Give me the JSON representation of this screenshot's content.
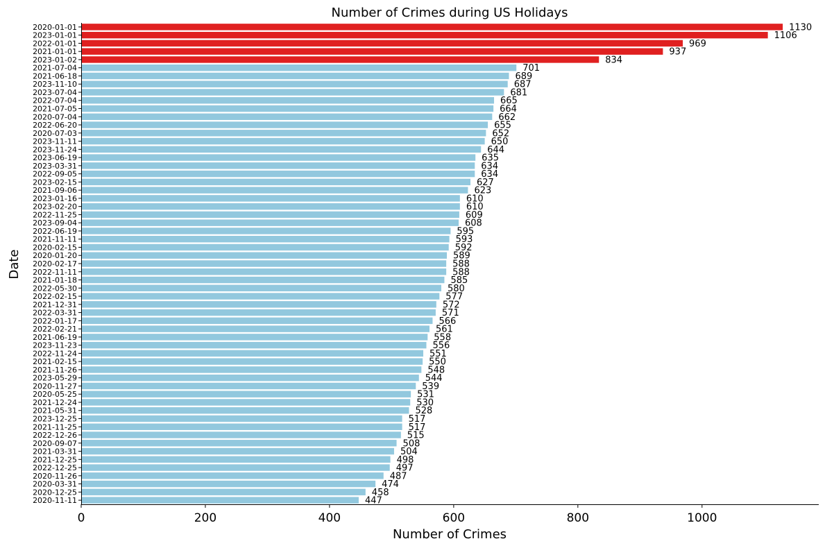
{
  "chart_data": {
    "type": "bar",
    "orientation": "horizontal",
    "title": "Number of Crimes during US Holidays",
    "xlabel": "Number of Crimes",
    "ylabel": "Date",
    "xlim": [
      0,
      1188
    ],
    "xticks": [
      0,
      200,
      400,
      600,
      800,
      1000
    ],
    "grid": false,
    "legend": "none",
    "colors": {
      "highlight": "#e02020",
      "default": "#92c8de"
    },
    "highlight_top_n": 5,
    "categories": [
      "2020-01-01",
      "2023-01-01",
      "2022-01-01",
      "2021-01-01",
      "2023-01-02",
      "2021-07-04",
      "2021-06-18",
      "2023-11-10",
      "2023-07-04",
      "2022-07-04",
      "2021-07-05",
      "2020-07-04",
      "2022-06-20",
      "2020-07-03",
      "2023-11-11",
      "2023-11-24",
      "2023-06-19",
      "2023-03-31",
      "2022-09-05",
      "2023-02-15",
      "2021-09-06",
      "2023-01-16",
      "2023-02-20",
      "2022-11-25",
      "2023-09-04",
      "2022-06-19",
      "2021-11-11",
      "2020-02-15",
      "2020-01-20",
      "2020-02-17",
      "2022-11-11",
      "2021-01-18",
      "2022-05-30",
      "2022-02-15",
      "2021-12-31",
      "2022-03-31",
      "2022-01-17",
      "2022-02-21",
      "2021-06-19",
      "2023-11-23",
      "2022-11-24",
      "2021-02-15",
      "2021-11-26",
      "2023-05-29",
      "2020-11-27",
      "2020-05-25",
      "2021-12-24",
      "2021-05-31",
      "2023-12-25",
      "2021-11-25",
      "2022-12-26",
      "2020-09-07",
      "2021-03-31",
      "2021-12-25",
      "2022-12-25",
      "2020-11-26",
      "2020-03-31",
      "2020-12-25",
      "2020-11-11"
    ],
    "values": [
      1130,
      1106,
      969,
      937,
      834,
      701,
      689,
      687,
      681,
      665,
      664,
      662,
      655,
      652,
      650,
      644,
      635,
      634,
      634,
      627,
      623,
      610,
      610,
      609,
      608,
      595,
      593,
      592,
      589,
      588,
      588,
      585,
      580,
      577,
      572,
      571,
      566,
      561,
      558,
      556,
      551,
      550,
      548,
      544,
      539,
      531,
      530,
      528,
      517,
      517,
      515,
      508,
      504,
      498,
      497,
      487,
      474,
      458,
      447
    ]
  }
}
